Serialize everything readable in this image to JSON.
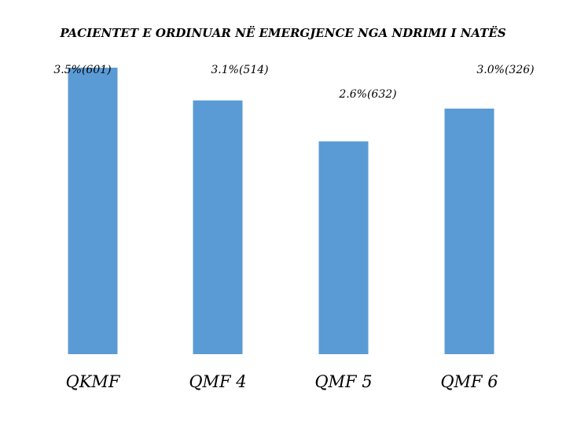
{
  "chart_data": {
    "type": "bar",
    "title": "PACIENTET E ORDINUAR NË EMERGJENCE NGA NDRIMI I NATËS",
    "categories": [
      "QKMF",
      "QMF 4",
      "QMF 5",
      "QMF 6"
    ],
    "values": [
      3.5,
      3.1,
      2.6,
      3.0
    ],
    "data_labels": [
      "3.5%(601)",
      "3.1%(514)",
      "2.6%(632)",
      "3.0%(326)"
    ],
    "counts": [
      601,
      514,
      632,
      326
    ],
    "unit": "%",
    "xlabel": "",
    "ylabel": "",
    "ylim": [
      0,
      3.5
    ],
    "grid": false,
    "legend": "none",
    "bar_color": "#5b9bd5"
  }
}
